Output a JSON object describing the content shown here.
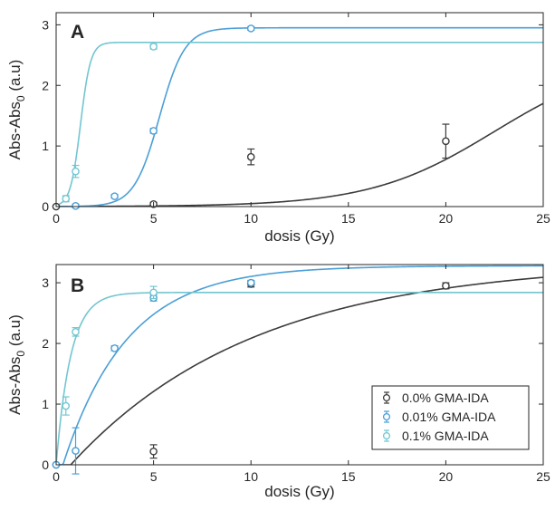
{
  "chart_data": [
    {
      "type": "scatter",
      "panel_label": "A",
      "xlabel": "dosis (Gy)",
      "ylabel": "Abs-Abs",
      "ylabel_sub": "0",
      "ylabel_suffix": " (a.u)",
      "xlim": [
        0,
        25
      ],
      "ylim": [
        0,
        3.2
      ],
      "xticks": [
        "0",
        "5",
        "10",
        "15",
        "20",
        "25"
      ],
      "yticks": [
        "0",
        "1",
        "2",
        "3"
      ],
      "grid": false,
      "legend": false,
      "series": [
        {
          "color": "#3c3c3c",
          "points": [
            {
              "x": 0,
              "y": 0.0,
              "err": 0.02
            },
            {
              "x": 5,
              "y": 0.04,
              "err": 0.03
            },
            {
              "x": 10,
              "y": 0.82,
              "err": 0.13
            },
            {
              "x": 20,
              "y": 1.08,
              "err": 0.28
            }
          ],
          "fit": {
            "model": "sigmoid",
            "A": 2.48,
            "x0": 22.5,
            "w": 3.2
          }
        },
        {
          "color": "#4a9fd6",
          "points": [
            {
              "x": 1,
              "y": 0.01,
              "err": 0.03
            },
            {
              "x": 3,
              "y": 0.17,
              "err": 0.03
            },
            {
              "x": 5,
              "y": 1.25,
              "err": 0.04
            },
            {
              "x": 10,
              "y": 2.94,
              "err": 0.03
            }
          ],
          "fit": {
            "model": "sigmoid",
            "A": 2.95,
            "x0": 5.3,
            "w": 0.65
          }
        },
        {
          "color": "#72c6d1",
          "points": [
            {
              "x": 0.5,
              "y": 0.13,
              "err": 0.05
            },
            {
              "x": 1,
              "y": 0.58,
              "err": 0.1
            },
            {
              "x": 5,
              "y": 2.64,
              "err": 0.04
            }
          ],
          "fit": {
            "model": "sigmoid",
            "A": 2.71,
            "x0": 1.25,
            "w": 0.26
          }
        }
      ]
    },
    {
      "type": "scatter",
      "panel_label": "B",
      "xlabel": "dosis (Gy)",
      "ylabel": "Abs-Abs",
      "ylabel_sub": "0",
      "ylabel_suffix": " (a.u)",
      "xlim": [
        0,
        25
      ],
      "ylim": [
        0,
        3.3
      ],
      "xticks": [
        "0",
        "5",
        "10",
        "15",
        "20",
        "25"
      ],
      "yticks": [
        "0",
        "1",
        "2",
        "3"
      ],
      "grid": false,
      "legend": "bottom-right",
      "series": [
        {
          "name": "0.0% GMA-IDA",
          "color": "#3c3c3c",
          "points": [
            {
              "x": 0,
              "y": 0.0,
              "err": 0.02
            },
            {
              "x": 5,
              "y": 0.22,
              "err": 0.11
            },
            {
              "x": 10,
              "y": 2.98,
              "err": 0.05
            },
            {
              "x": 20,
              "y": 2.95,
              "err": 0.05
            }
          ],
          "fit": {
            "model": "exp",
            "A": 3.35,
            "x0": 0.75,
            "tau": 9.5
          }
        },
        {
          "name": "0.01% GMA-IDA",
          "color": "#4a9fd6",
          "points": [
            {
              "x": 0,
              "y": 0.0,
              "err": 0.02
            },
            {
              "x": 1,
              "y": 0.23,
              "err": 0.38
            },
            {
              "x": 3,
              "y": 1.92,
              "err": 0.04
            },
            {
              "x": 5,
              "y": 2.75,
              "err": 0.05
            },
            {
              "x": 10,
              "y": 3.0,
              "err": 0.04
            }
          ],
          "fit": {
            "model": "exp",
            "A": 3.28,
            "x0": 0.35,
            "tau": 3.3
          }
        },
        {
          "name": "0.1% GMA-IDA",
          "color": "#72c6d1",
          "points": [
            {
              "x": 0.5,
              "y": 0.97,
              "err": 0.15
            },
            {
              "x": 1,
              "y": 2.19,
              "err": 0.07
            },
            {
              "x": 5,
              "y": 2.84,
              "err": 0.1
            }
          ],
          "fit": {
            "model": "exp",
            "A": 2.84,
            "x0": 0.0,
            "tau": 0.75
          }
        }
      ]
    }
  ]
}
